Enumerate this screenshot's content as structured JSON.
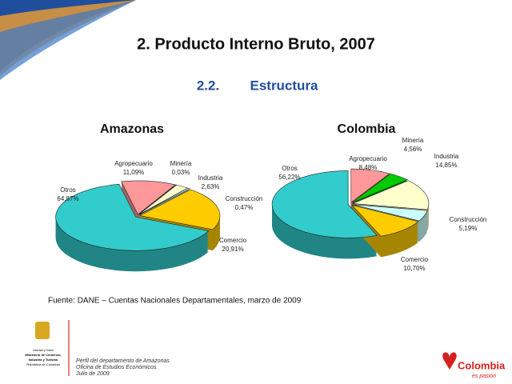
{
  "slide": {
    "title": "2. Producto Interno Bruto, 2007",
    "section_number": "2.2.",
    "section_title": "Estructura",
    "source": "Fuente: DANE – Cuentas Nacionales Departamentales, marzo de 2009",
    "footer": [
      "Perfil del departamento de Amazonas",
      "Oficina de Estudios Económicos.",
      "Julio de 2009"
    ],
    "ministry": [
      "Libertad y Orden",
      "Ministerio de Comercio,",
      "Industria y Turismo",
      "República de Colombia"
    ],
    "brand": "Colombia",
    "brand_tagline": "es pasión"
  },
  "chart_data": [
    {
      "type": "pie",
      "title": "Amazonas",
      "categories": [
        "Agropecuario",
        "Minería",
        "Industria",
        "Construcción",
        "Comercio",
        "Otros"
      ],
      "values": [
        11.09,
        0.03,
        2.63,
        0.47,
        20.91,
        64.87
      ],
      "value_labels": [
        "11,09%",
        "0,03%",
        "2,63%",
        "0,47%",
        "20,91%",
        "64,87%"
      ],
      "colors": [
        "#ff9999",
        "#00cc00",
        "#ffffcc",
        "#ccffff",
        "#ffcc00",
        "#33cccc"
      ]
    },
    {
      "type": "pie",
      "title": "Colombia",
      "categories": [
        "Agropecuario",
        "Minería",
        "Industria",
        "Construcción",
        "Comercio",
        "Otros"
      ],
      "values": [
        8.48,
        4.56,
        14.85,
        5.19,
        10.7,
        56.22
      ],
      "value_labels": [
        "8,48%",
        "4,56%",
        "14,85%",
        "5,19%",
        "10,70%",
        "56,22%"
      ],
      "colors": [
        "#ff9999",
        "#00cc00",
        "#ffffcc",
        "#ccffff",
        "#ffcc00",
        "#33cccc"
      ]
    }
  ]
}
